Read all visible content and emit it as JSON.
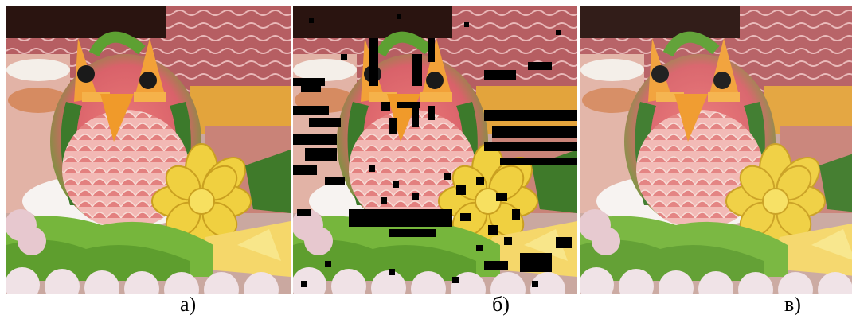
{
  "panels": [
    {
      "id": "a",
      "caption": "а)",
      "variant": "original"
    },
    {
      "id": "b",
      "caption": "б)",
      "variant": "damaged"
    },
    {
      "id": "c",
      "caption": "в)",
      "variant": "restored"
    }
  ],
  "colors": {
    "background_dark": "#2a1410",
    "meat": "#b85a5e",
    "melon_flesh": "#e58a8a",
    "melon_rind": "#3f7d2e",
    "beak": "#f29a2e",
    "pineapple": "#f0d040",
    "lettuce": "#72b33c",
    "cream": "#f4f0ee",
    "mask": "#000000"
  }
}
